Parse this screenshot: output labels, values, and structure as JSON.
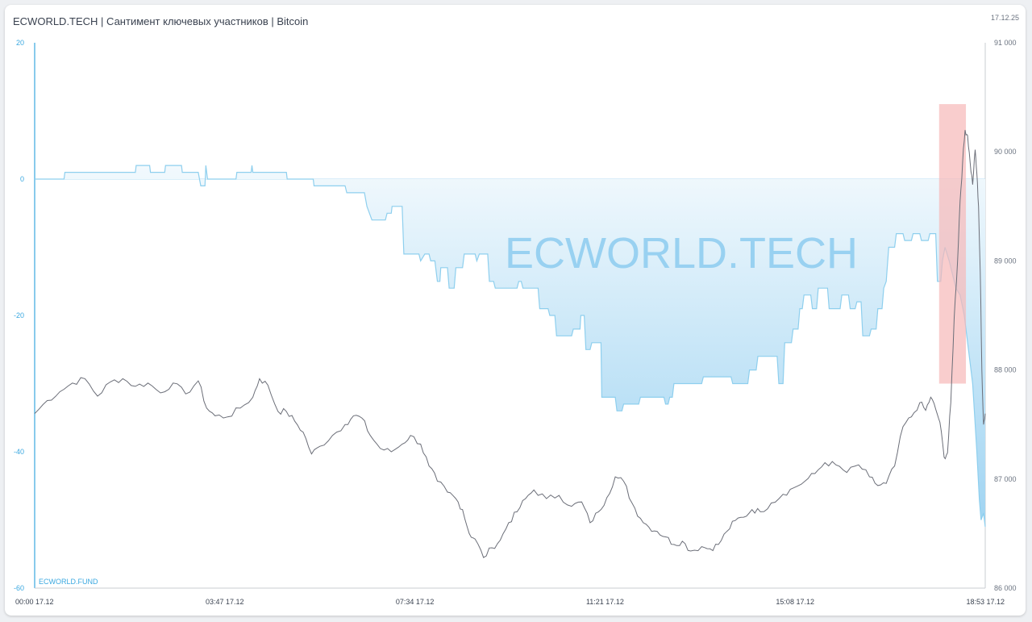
{
  "header": {
    "title": "ECWORLD.TECH | Сантимент ключевых участников | Bitcoin",
    "date": "17.12.25"
  },
  "watermark": "ECWORLD.TECH",
  "footer_label": "ECWORLD.FUND",
  "colors": {
    "sentiment_line": "#8ecfee",
    "sentiment_fill_top": "#f2f9fd",
    "sentiment_fill_bottom": "#9fd4f2",
    "price_line": "#6b6e78",
    "left_axis": "#3aa8e0",
    "right_axis": "#6b7380",
    "highlight": "#f6b8b8",
    "watermark": "#8ccbef"
  },
  "chart_data": {
    "type": "line",
    "title": "ECWORLD.TECH | Сантимент ключевых участников | Bitcoin",
    "x": {
      "tick_labels": [
        "00:00 17.12",
        "03:47 17.12",
        "07:34 17.12",
        "11:21 17.12",
        "15:08 17.12",
        "18:53 17.12"
      ],
      "range_minutes": [
        0,
        1133
      ]
    },
    "y_left": {
      "ylim": [
        -60,
        20
      ],
      "ticks": [
        20,
        0,
        -20,
        -40,
        -60
      ],
      "tick_labels": [
        "20",
        "0",
        "-20",
        "-40",
        "-60"
      ]
    },
    "y_right": {
      "ylim": [
        86000,
        91000
      ],
      "ticks": [
        91000,
        90000,
        89000,
        88000,
        87000,
        86000
      ],
      "tick_labels": [
        "91 000",
        "90 000",
        "89 000",
        "88 000",
        "87 000",
        "86 000"
      ]
    },
    "highlight": {
      "x_range_minutes": [
        1078,
        1110
      ],
      "y_left_range": [
        -30,
        11
      ]
    },
    "series": [
      {
        "axis": "left",
        "style": "area",
        "points": [
          [
            0,
            0
          ],
          [
            35,
            0
          ],
          [
            36,
            1
          ],
          [
            120,
            1
          ],
          [
            121,
            2
          ],
          [
            137,
            2
          ],
          [
            138,
            1
          ],
          [
            155,
            1
          ],
          [
            156,
            2
          ],
          [
            175,
            2
          ],
          [
            176,
            1
          ],
          [
            195,
            1
          ],
          [
            198,
            -1
          ],
          [
            203,
            -1
          ],
          [
            204,
            2
          ],
          [
            206,
            0
          ],
          [
            240,
            0
          ],
          [
            241,
            1
          ],
          [
            258,
            1
          ],
          [
            259,
            2
          ],
          [
            260,
            1
          ],
          [
            300,
            1
          ],
          [
            301,
            0
          ],
          [
            332,
            0
          ],
          [
            333,
            -1
          ],
          [
            370,
            -1
          ],
          [
            372,
            -2
          ],
          [
            393,
            -2
          ],
          [
            396,
            -4
          ],
          [
            402,
            -6
          ],
          [
            418,
            -6
          ],
          [
            420,
            -5
          ],
          [
            425,
            -5
          ],
          [
            426,
            -4
          ],
          [
            438,
            -4
          ],
          [
            440,
            -11
          ],
          [
            458,
            -11
          ],
          [
            460,
            -12
          ],
          [
            465,
            -11
          ],
          [
            470,
            -11
          ],
          [
            472,
            -12
          ],
          [
            477,
            -12
          ],
          [
            478,
            -13
          ],
          [
            480,
            -15
          ],
          [
            483,
            -15
          ],
          [
            484,
            -13
          ],
          [
            492,
            -13
          ],
          [
            494,
            -16
          ],
          [
            500,
            -16
          ],
          [
            502,
            -13
          ],
          [
            510,
            -13
          ],
          [
            512,
            -11
          ],
          [
            525,
            -11
          ],
          [
            527,
            -12
          ],
          [
            530,
            -11
          ],
          [
            540,
            -11
          ],
          [
            542,
            -15
          ],
          [
            547,
            -15
          ],
          [
            549,
            -16
          ],
          [
            575,
            -16
          ],
          [
            577,
            -15
          ],
          [
            580,
            -15
          ],
          [
            582,
            -16
          ],
          [
            600,
            -16
          ],
          [
            602,
            -19
          ],
          [
            612,
            -19
          ],
          [
            614,
            -20
          ],
          [
            620,
            -20
          ],
          [
            622,
            -23
          ],
          [
            640,
            -23
          ],
          [
            642,
            -22
          ],
          [
            650,
            -22
          ],
          [
            651,
            -20
          ],
          [
            655,
            -20
          ],
          [
            657,
            -25
          ],
          [
            662,
            -25
          ],
          [
            664,
            -24
          ],
          [
            675,
            -24
          ],
          [
            676,
            -32
          ],
          [
            692,
            -32
          ],
          [
            694,
            -34
          ],
          [
            700,
            -34
          ],
          [
            702,
            -33
          ],
          [
            720,
            -33
          ],
          [
            722,
            -32
          ],
          [
            750,
            -32
          ],
          [
            752,
            -33
          ],
          [
            755,
            -33
          ],
          [
            757,
            -32
          ],
          [
            760,
            -32
          ],
          [
            762,
            -30
          ],
          [
            795,
            -30
          ],
          [
            797,
            -29
          ],
          [
            830,
            -29
          ],
          [
            832,
            -30
          ],
          [
            850,
            -30
          ],
          [
            852,
            -28
          ],
          [
            860,
            -28
          ],
          [
            862,
            -26
          ],
          [
            885,
            -26
          ],
          [
            887,
            -30
          ],
          [
            892,
            -30
          ],
          [
            894,
            -24
          ],
          [
            902,
            -24
          ],
          [
            904,
            -22
          ],
          [
            910,
            -22
          ],
          [
            912,
            -19
          ],
          [
            915,
            -19
          ],
          [
            917,
            -17
          ],
          [
            925,
            -17
          ],
          [
            927,
            -19
          ],
          [
            932,
            -19
          ],
          [
            934,
            -16
          ],
          [
            945,
            -16
          ],
          [
            947,
            -19
          ],
          [
            960,
            -19
          ],
          [
            962,
            -17
          ],
          [
            970,
            -17
          ],
          [
            972,
            -19
          ],
          [
            978,
            -19
          ],
          [
            980,
            -18
          ],
          [
            985,
            -18
          ],
          [
            987,
            -23
          ],
          [
            995,
            -23
          ],
          [
            997,
            -22
          ],
          [
            1003,
            -22
          ],
          [
            1005,
            -19
          ],
          [
            1010,
            -19
          ],
          [
            1012,
            -16
          ],
          [
            1015,
            -15
          ],
          [
            1018,
            -10
          ],
          [
            1025,
            -10
          ],
          [
            1027,
            -8
          ],
          [
            1035,
            -8
          ],
          [
            1037,
            -9
          ],
          [
            1045,
            -9
          ],
          [
            1047,
            -8
          ],
          [
            1055,
            -8
          ],
          [
            1057,
            -9
          ],
          [
            1065,
            -9
          ],
          [
            1067,
            -8
          ],
          [
            1074,
            -8
          ],
          [
            1076,
            -15
          ],
          [
            1080,
            -15
          ],
          [
            1082,
            -12
          ],
          [
            1085,
            -10
          ],
          [
            1090,
            -12
          ],
          [
            1098,
            -16
          ],
          [
            1103,
            -17
          ],
          [
            1108,
            -20
          ],
          [
            1113,
            -25
          ],
          [
            1118,
            -30
          ],
          [
            1123,
            -40
          ],
          [
            1126,
            -47
          ],
          [
            1128,
            -50
          ],
          [
            1131,
            -49
          ],
          [
            1133,
            -51
          ]
        ]
      },
      {
        "axis": "right",
        "style": "line",
        "points": [
          [
            0,
            87600
          ],
          [
            15,
            87720
          ],
          [
            30,
            87800
          ],
          [
            45,
            87880
          ],
          [
            60,
            87920
          ],
          [
            75,
            87760
          ],
          [
            90,
            87890
          ],
          [
            105,
            87920
          ],
          [
            120,
            87850
          ],
          [
            135,
            87880
          ],
          [
            150,
            87790
          ],
          [
            165,
            87880
          ],
          [
            180,
            87780
          ],
          [
            195,
            87900
          ],
          [
            205,
            87650
          ],
          [
            215,
            87580
          ],
          [
            230,
            87570
          ],
          [
            245,
            87650
          ],
          [
            260,
            87750
          ],
          [
            268,
            87920
          ],
          [
            278,
            87860
          ],
          [
            290,
            87620
          ],
          [
            300,
            87620
          ],
          [
            310,
            87530
          ],
          [
            320,
            87430
          ],
          [
            330,
            87230
          ],
          [
            340,
            87300
          ],
          [
            355,
            87400
          ],
          [
            370,
            87500
          ],
          [
            380,
            87580
          ],
          [
            390,
            87560
          ],
          [
            400,
            87400
          ],
          [
            412,
            87280
          ],
          [
            425,
            87250
          ],
          [
            438,
            87320
          ],
          [
            448,
            87400
          ],
          [
            460,
            87320
          ],
          [
            470,
            87120
          ],
          [
            480,
            86980
          ],
          [
            492,
            86880
          ],
          [
            502,
            86820
          ],
          [
            510,
            86720
          ],
          [
            518,
            86500
          ],
          [
            525,
            86450
          ],
          [
            535,
            86280
          ],
          [
            545,
            86370
          ],
          [
            555,
            86440
          ],
          [
            565,
            86600
          ],
          [
            575,
            86700
          ],
          [
            585,
            86820
          ],
          [
            595,
            86900
          ],
          [
            610,
            86820
          ],
          [
            625,
            86850
          ],
          [
            640,
            86750
          ],
          [
            652,
            86790
          ],
          [
            662,
            86600
          ],
          [
            672,
            86700
          ],
          [
            682,
            86830
          ],
          [
            692,
            87020
          ],
          [
            702,
            86980
          ],
          [
            712,
            86780
          ],
          [
            722,
            86640
          ],
          [
            732,
            86560
          ],
          [
            742,
            86520
          ],
          [
            752,
            86470
          ],
          [
            762,
            86400
          ],
          [
            772,
            86430
          ],
          [
            782,
            86340
          ],
          [
            795,
            86380
          ],
          [
            805,
            86360
          ],
          [
            815,
            86400
          ],
          [
            825,
            86520
          ],
          [
            835,
            86620
          ],
          [
            845,
            86650
          ],
          [
            855,
            86720
          ],
          [
            865,
            86700
          ],
          [
            878,
            86780
          ],
          [
            892,
            86860
          ],
          [
            905,
            86920
          ],
          [
            918,
            86980
          ],
          [
            930,
            87050
          ],
          [
            942,
            87150
          ],
          [
            955,
            87130
          ],
          [
            968,
            87060
          ],
          [
            982,
            87130
          ],
          [
            995,
            87020
          ],
          [
            1005,
            86940
          ],
          [
            1015,
            86960
          ],
          [
            1025,
            87120
          ],
          [
            1035,
            87480
          ],
          [
            1045,
            87570
          ],
          [
            1055,
            87700
          ],
          [
            1062,
            87630
          ],
          [
            1068,
            87750
          ],
          [
            1074,
            87640
          ],
          [
            1079,
            87520
          ],
          [
            1084,
            87200
          ],
          [
            1088,
            87240
          ],
          [
            1092,
            87700
          ],
          [
            1096,
            88480
          ],
          [
            1100,
            89000
          ],
          [
            1103,
            89550
          ],
          [
            1106,
            89900
          ],
          [
            1109,
            90200
          ],
          [
            1112,
            90150
          ],
          [
            1115,
            89900
          ],
          [
            1118,
            89700
          ],
          [
            1121,
            90020
          ],
          [
            1123,
            89800
          ],
          [
            1125,
            89500
          ],
          [
            1127,
            88900
          ],
          [
            1129,
            88000
          ],
          [
            1131,
            87500
          ],
          [
            1133,
            87600
          ]
        ]
      }
    ]
  }
}
